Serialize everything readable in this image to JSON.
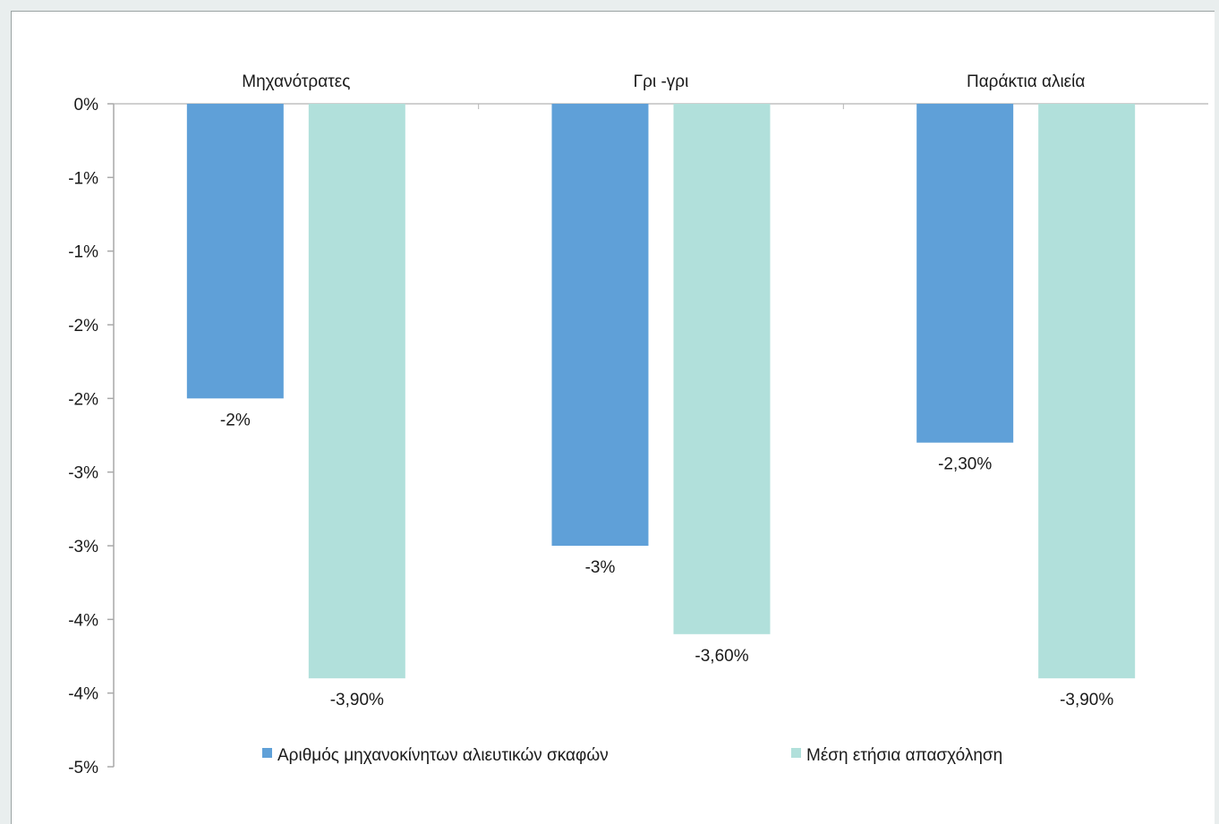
{
  "chart_data": {
    "type": "bar",
    "categories": [
      "Μηχανότρατες",
      "Γρι -γρι",
      "Παράκτια αλιεία"
    ],
    "series": [
      {
        "name": "Αριθμός μηχανοκίνητων αλιευτικών σκαφών",
        "values": [
          -2.0,
          -3.0,
          -2.3
        ],
        "labels": [
          "-2%",
          "-3%",
          "-2,30%"
        ],
        "color": "#5fa0d8"
      },
      {
        "name": "Μέση ετήσια απασχόληση",
        "values": [
          -3.9,
          -3.6,
          -3.9
        ],
        "labels": [
          "-3,90%",
          "-3,60%",
          "-3,90%"
        ],
        "color": "#b1e0db"
      }
    ],
    "ylim": [
      -4.5,
      0
    ],
    "yticks": [
      0,
      -0.5,
      -1.0,
      -1.5,
      -2.0,
      -2.5,
      -3.0,
      -3.5,
      -4.0,
      -4.5
    ],
    "ytick_labels": [
      "0%",
      "-1%",
      "-1%",
      "-2%",
      "-2%",
      "-3%",
      "-3%",
      "-4%",
      "-4%",
      "-5%"
    ],
    "category_labels_position": "top",
    "legend_position": "bottom",
    "grid": false,
    "xlabel": "",
    "ylabel": ""
  }
}
